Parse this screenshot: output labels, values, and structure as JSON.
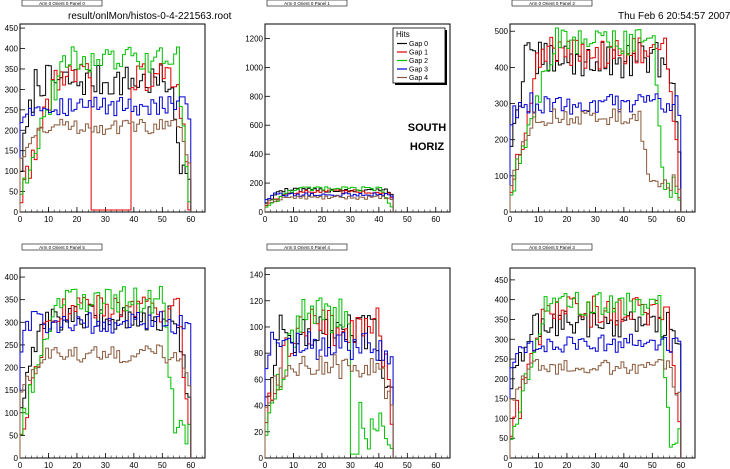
{
  "header": {
    "file_path": "result/onlMon/histos-0-4-221563.root",
    "datetime": "Thu Feb  6 20:54:57 2007"
  },
  "colors": {
    "gap0": "#000000",
    "gap1": "#e00000",
    "gap2": "#00c000",
    "gap3": "#0000d0",
    "gap4": "#8a5a3c"
  },
  "legend": {
    "title": "Hits",
    "entries": [
      "Gap 0",
      "Gap 1",
      "Gap 2",
      "Gap 3",
      "Gap 4"
    ]
  },
  "annotation": {
    "line1": "SOUTH",
    "line2": "HORIZ"
  },
  "chart_data": [
    {
      "type": "histogram",
      "title": "Arm 0 Orient 0 Panel 0",
      "xlim": [
        0,
        65
      ],
      "ylim": [
        0,
        460
      ],
      "xticks": [
        0,
        10,
        20,
        30,
        40,
        50,
        60
      ],
      "yticks": [
        0,
        50,
        100,
        150,
        200,
        250,
        300,
        350,
        400,
        450
      ],
      "xmax_data": 60,
      "series": [
        {
          "name": "Gap 0",
          "profile": {
            "plateau": 320,
            "plateau_start": 5,
            "plateau_end": 52,
            "min_edge": 120,
            "noise": 40
          }
        },
        {
          "name": "Gap 1",
          "profile": {
            "plateau": 330,
            "plateau_start": 12,
            "plateau_end": 55,
            "min_edge": 40,
            "noise": 35,
            "gap": [
              25,
              39,
              5
            ]
          }
        },
        {
          "name": "Gap 2",
          "profile": {
            "plateau": 370,
            "plateau_start": 15,
            "plateau_end": 55,
            "min_edge": 60,
            "noise": 35
          }
        },
        {
          "name": "Gap 3",
          "profile": {
            "plateau": 260,
            "plateau_start": 3,
            "plateau_end": 58,
            "min_edge": 230,
            "noise": 25
          }
        },
        {
          "name": "Gap 4",
          "profile": {
            "plateau": 210,
            "plateau_start": 8,
            "plateau_end": 55,
            "min_edge": 140,
            "noise": 20
          }
        }
      ]
    },
    {
      "type": "histogram",
      "title": "Arm 0 Orient 0 Panel 1",
      "xlim": [
        0,
        65
      ],
      "ylim": [
        0,
        1300
      ],
      "xticks": [
        0,
        10,
        20,
        30,
        40,
        50,
        60
      ],
      "yticks": [
        0,
        200,
        400,
        600,
        800,
        1000,
        1200
      ],
      "xmax_data": 45,
      "series": [
        {
          "name": "Gap 0",
          "profile": {
            "plateau": 150,
            "plateau_start": 5,
            "plateau_end": 42,
            "min_edge": 70,
            "noise": 15
          }
        },
        {
          "name": "Gap 1",
          "profile": {
            "plateau": 140,
            "plateau_start": 8,
            "plateau_end": 42,
            "min_edge": 50,
            "noise": 15
          }
        },
        {
          "name": "Gap 2",
          "profile": {
            "plateau": 160,
            "plateau_start": 10,
            "plateau_end": 40,
            "min_edge": 40,
            "noise": 15
          }
        },
        {
          "name": "Gap 3",
          "profile": {
            "plateau": 120,
            "plateau_start": 3,
            "plateau_end": 44,
            "min_edge": 90,
            "noise": 12
          }
        },
        {
          "name": "Gap 4",
          "profile": {
            "plateau": 100,
            "plateau_start": 6,
            "plateau_end": 42,
            "min_edge": 60,
            "noise": 12
          }
        }
      ]
    },
    {
      "type": "histogram",
      "title": "Arm 0 Orient 0 Panel 2",
      "xlim": [
        0,
        65
      ],
      "ylim": [
        0,
        520
      ],
      "xticks": [
        0,
        10,
        20,
        30,
        40,
        50,
        60
      ],
      "yticks": [
        0,
        100,
        200,
        300,
        400,
        500
      ],
      "xmax_data": 60,
      "series": [
        {
          "name": "Gap 0",
          "profile": {
            "plateau": 420,
            "plateau_start": 5,
            "plateau_end": 55,
            "min_edge": 200,
            "noise": 50
          }
        },
        {
          "name": "Gap 1",
          "profile": {
            "plateau": 440,
            "plateau_start": 10,
            "plateau_end": 55,
            "min_edge": 70,
            "noise": 45
          }
        },
        {
          "name": "Gap 2",
          "profile": {
            "plateau": 470,
            "plateau_start": 15,
            "plateau_end": 50,
            "min_edge": 60,
            "noise": 40
          }
        },
        {
          "name": "Gap 3",
          "profile": {
            "plateau": 300,
            "plateau_start": 3,
            "plateau_end": 58,
            "min_edge": 250,
            "noise": 30
          }
        },
        {
          "name": "Gap 4",
          "profile": {
            "plateau": 260,
            "plateau_start": 8,
            "plateau_end": 45,
            "min_edge": 80,
            "noise": 25
          }
        }
      ]
    },
    {
      "type": "histogram",
      "title": "Arm 0 Orient 0 Panel 5",
      "xlim": [
        0,
        65
      ],
      "ylim": [
        0,
        420
      ],
      "xticks": [
        0,
        10,
        20,
        30,
        40,
        50,
        60
      ],
      "yticks": [
        0,
        50,
        100,
        150,
        200,
        250,
        300,
        350,
        400
      ],
      "xmax_data": 60,
      "series": [
        {
          "name": "Gap 0",
          "profile": {
            "plateau": 310,
            "plateau_start": 8,
            "plateau_end": 55,
            "min_edge": 120,
            "noise": 30
          }
        },
        {
          "name": "Gap 1",
          "profile": {
            "plateau": 330,
            "plateau_start": 10,
            "plateau_end": 55,
            "min_edge": 60,
            "noise": 30
          }
        },
        {
          "name": "Gap 2",
          "profile": {
            "plateau": 350,
            "plateau_start": 12,
            "plateau_end": 50,
            "min_edge": 60,
            "noise": 30
          }
        },
        {
          "name": "Gap 3",
          "profile": {
            "plateau": 300,
            "plateau_start": 2,
            "plateau_end": 58,
            "min_edge": 240,
            "noise": 25
          }
        },
        {
          "name": "Gap 4",
          "profile": {
            "plateau": 230,
            "plateau_start": 8,
            "plateau_end": 55,
            "min_edge": 150,
            "noise": 20
          }
        }
      ]
    },
    {
      "type": "histogram",
      "title": "Arm 0 Orient 0 Panel 4",
      "xlim": [
        0,
        65
      ],
      "ylim": [
        0,
        145
      ],
      "xticks": [
        0,
        10,
        20,
        30,
        40,
        50,
        60
      ],
      "yticks": [
        0,
        20,
        40,
        60,
        80,
        100,
        120,
        140
      ],
      "xmax_data": 45,
      "series": [
        {
          "name": "Gap 0",
          "profile": {
            "plateau": 95,
            "plateau_start": 5,
            "plateau_end": 38,
            "min_edge": 50,
            "noise": 15
          }
        },
        {
          "name": "Gap 1",
          "profile": {
            "plateau": 100,
            "plateau_start": 10,
            "plateau_end": 40,
            "min_edge": 30,
            "noise": 15
          }
        },
        {
          "name": "Gap 2",
          "profile": {
            "plateau": 110,
            "plateau_start": 12,
            "plateau_end": 30,
            "min_edge": 20,
            "noise": 15,
            "gap": [
              30,
              33,
              3
            ]
          }
        },
        {
          "name": "Gap 3",
          "profile": {
            "plateau": 85,
            "plateau_start": 2,
            "plateau_end": 40,
            "min_edge": 70,
            "noise": 12
          }
        },
        {
          "name": "Gap 4",
          "profile": {
            "plateau": 70,
            "plateau_start": 6,
            "plateau_end": 40,
            "min_edge": 40,
            "noise": 10
          }
        }
      ]
    },
    {
      "type": "histogram",
      "title": "Arm 0 Orient 0 Panel 3",
      "xlim": [
        0,
        65
      ],
      "ylim": [
        0,
        480
      ],
      "xticks": [
        0,
        10,
        20,
        30,
        40,
        50,
        60
      ],
      "yticks": [
        0,
        50,
        100,
        150,
        200,
        250,
        300,
        350,
        400,
        450
      ],
      "xmax_data": 60,
      "series": [
        {
          "name": "Gap 0",
          "profile": {
            "plateau": 340,
            "plateau_start": 8,
            "plateau_end": 57,
            "min_edge": 180,
            "noise": 35
          }
        },
        {
          "name": "Gap 1",
          "profile": {
            "plateau": 370,
            "plateau_start": 12,
            "plateau_end": 55,
            "min_edge": 60,
            "noise": 40
          }
        },
        {
          "name": "Gap 2",
          "profile": {
            "plateau": 390,
            "plateau_start": 12,
            "plateau_end": 52,
            "min_edge": 50,
            "noise": 30
          }
        },
        {
          "name": "Gap 3",
          "profile": {
            "plateau": 290,
            "plateau_start": 3,
            "plateau_end": 58,
            "min_edge": 230,
            "noise": 25
          }
        },
        {
          "name": "Gap 4",
          "profile": {
            "plateau": 230,
            "plateau_start": 8,
            "plateau_end": 55,
            "min_edge": 150,
            "noise": 20
          }
        }
      ]
    }
  ]
}
